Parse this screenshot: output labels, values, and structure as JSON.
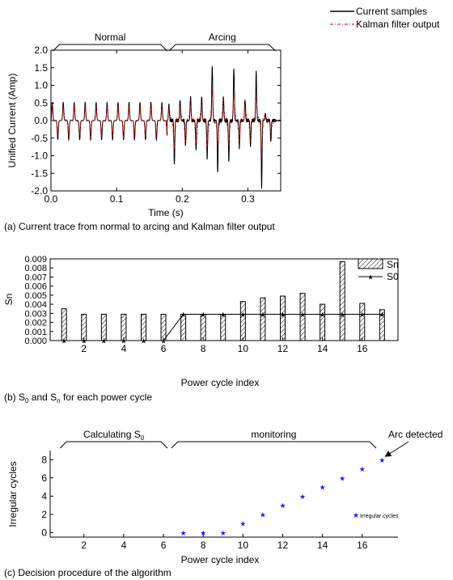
{
  "chart_data": [
    {
      "type": "line",
      "legend": {
        "placement": "top-right",
        "entries": [
          "Current samples",
          "Kalman filter output"
        ]
      },
      "series": [
        {
          "name": "Current samples",
          "color": "#000000",
          "style": "solid"
        },
        {
          "name": "Kalman filter output",
          "color": "#cc0000",
          "style": "dash-dot"
        }
      ],
      "xlabel": "Time (s)",
      "ylabel": "Unified Current (Amp)",
      "xlim": [
        0.0,
        0.35
      ],
      "ylim": [
        -2.0,
        2.0
      ],
      "x_ticks": [
        "0.0",
        "0.1",
        "0.2",
        "0.3"
      ],
      "x_tick_values": [
        0.0,
        0.1,
        0.2,
        0.3
      ],
      "y_ticks": [
        "2.0",
        "1.5",
        "1.0",
        "0.5",
        "0.0",
        "-0.5",
        "-1.0",
        "-1.5",
        "-2.0"
      ],
      "y_tick_values": [
        2.0,
        1.5,
        1.0,
        0.5,
        0.0,
        -0.5,
        -1.0,
        -1.5,
        -2.0
      ],
      "grid": false,
      "annotations": [
        {
          "text": "Normal",
          "x_start": 0.003,
          "x_end": 0.177
        },
        {
          "text": "Arcing",
          "x_start": 0.18,
          "x_end": 0.342
        }
      ],
      "normal_cycle": {
        "period": 0.0167,
        "peak": 0.52,
        "trough": -0.55,
        "cycles": 10
      },
      "arcing_peaks": [
        {
          "t": 0.188,
          "pos": 0.45,
          "neg": -1.25
        },
        {
          "t": 0.205,
          "pos": 0.6,
          "neg": -0.75
        },
        {
          "t": 0.221,
          "pos": 0.68,
          "neg": -0.85
        },
        {
          "t": 0.238,
          "pos": 0.68,
          "neg": -1.1
        },
        {
          "t": 0.254,
          "pos": 1.58,
          "neg": -1.5
        },
        {
          "t": 0.271,
          "pos": 0.68,
          "neg": -1.15
        },
        {
          "t": 0.287,
          "pos": 1.5,
          "neg": -0.8
        },
        {
          "t": 0.304,
          "pos": 0.6,
          "neg": -0.75
        },
        {
          "t": 0.321,
          "pos": 1.4,
          "neg": -1.9
        },
        {
          "t": 0.335,
          "pos": 0.2,
          "neg": -0.6
        }
      ],
      "caption": "(a) Current trace from normal to arcing and Kalman filter output"
    },
    {
      "type": "bar",
      "legend": {
        "placement": "top-right",
        "entries": [
          "Sn",
          "S0"
        ]
      },
      "ylabel": "Sn",
      "xlabel": "Power cycle index",
      "x": [
        1,
        2,
        3,
        4,
        5,
        6,
        7,
        8,
        9,
        10,
        11,
        12,
        13,
        14,
        15,
        16,
        17
      ],
      "x_ticks": [
        "2",
        "4",
        "6",
        "8",
        "10",
        "12",
        "14",
        "16"
      ],
      "x_tick_values": [
        2,
        4,
        6,
        8,
        10,
        12,
        14,
        16
      ],
      "xlim": [
        0.3,
        17.8
      ],
      "ylim": [
        0.0,
        0.009
      ],
      "y_ticks": [
        "0.009",
        "0.008",
        "0.007",
        "0.006",
        "0.005",
        "0.004",
        "0.003",
        "0.002",
        "0.001",
        "0.000"
      ],
      "y_tick_values": [
        0.009,
        0.008,
        0.007,
        0.006,
        0.005,
        0.004,
        0.003,
        0.002,
        0.001,
        0.0
      ],
      "series": [
        {
          "name": "Sn",
          "style": "hatched-bar",
          "values": [
            0.0035,
            0.0029,
            0.0029,
            0.0029,
            0.0029,
            0.0029,
            0.0029,
            0.0029,
            0.0029,
            0.0043,
            0.0047,
            0.0049,
            0.0052,
            0.004,
            0.0087,
            0.0041,
            0.0034
          ]
        },
        {
          "name": "S0",
          "style": "line-star",
          "values": [
            0,
            0,
            0,
            0,
            0,
            0,
            0.0029,
            0.0029,
            0.0029,
            0.0029,
            0.0029,
            0.0029,
            0.0029,
            0.0029,
            0.0029,
            0.0029,
            0.0029
          ]
        }
      ],
      "reference_line": {
        "value": 0.0029,
        "x_start": 7,
        "x_end": 17
      },
      "caption_parts": [
        "(b) S",
        "0",
        " and S",
        "n",
        " for each power cycle"
      ]
    },
    {
      "type": "scatter",
      "ylabel": "Irregular cycles",
      "xlabel": "Power cycle index",
      "xlim": [
        0.3,
        17.8
      ],
      "ylim": [
        -0.5,
        9
      ],
      "x_ticks": [
        "2",
        "4",
        "6",
        "8",
        "10",
        "12",
        "14",
        "16"
      ],
      "x_tick_values": [
        2,
        4,
        6,
        8,
        10,
        12,
        14,
        16
      ],
      "y_ticks": [
        "8",
        "6",
        "4",
        "2",
        "0"
      ],
      "y_tick_values": [
        8,
        6,
        4,
        2,
        0
      ],
      "series": [
        {
          "name": "Irregular cycles",
          "marker": "star",
          "color": "#1a1aff",
          "x": [
            7,
            8,
            9,
            10,
            11,
            12,
            13,
            14,
            15,
            16,
            17
          ],
          "y": [
            0,
            0,
            0,
            1,
            2,
            3,
            4,
            5,
            6,
            7,
            8
          ]
        }
      ],
      "legend": {
        "placement": "right",
        "entries": [
          "Irregular cycles"
        ]
      },
      "annotations": [
        {
          "text_parts": [
            "Calculating S",
            "0"
          ],
          "x_start": 0.8,
          "x_end": 6.2
        },
        {
          "text": "monitoring",
          "x_start": 6.4,
          "x_end": 16.7
        },
        {
          "text": "Arc detected",
          "arrow_to": [
            17,
            8
          ]
        }
      ],
      "caption": "(c) Decision procedure of the algorithm"
    }
  ]
}
